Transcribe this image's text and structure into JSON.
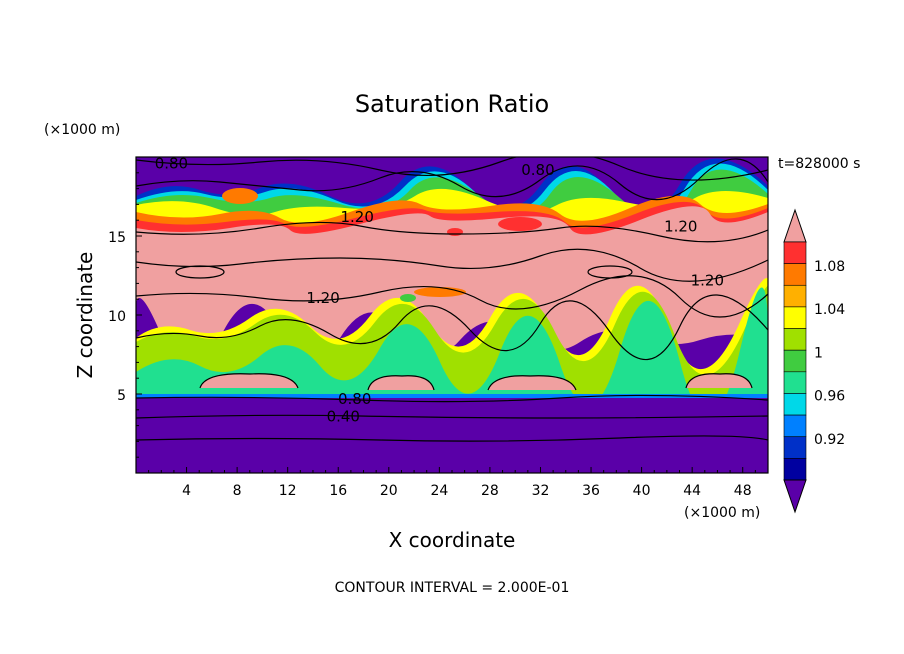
{
  "chart_data": {
    "type": "heatmap",
    "title": "Saturation Ratio",
    "xlabel": "X coordinate",
    "ylabel": "Z coordinate",
    "x_unit": "(×1000 m)",
    "y_unit": "(×1000 m)",
    "time_label": "t=828000 s",
    "footer": "CONTOUR INTERVAL = 2.000E-01",
    "xlim": [
      0,
      50
    ],
    "ylim": [
      0,
      20
    ],
    "x_ticks": [
      4,
      8,
      12,
      16,
      20,
      24,
      28,
      32,
      36,
      40,
      44,
      48
    ],
    "y_ticks": [
      5,
      10,
      15
    ],
    "colorbar": {
      "labels": [
        "1.08",
        "1.04",
        "1",
        "0.96",
        "0.92"
      ],
      "colors": [
        "#f0a0a0",
        "#ff3030",
        "#ff7a00",
        "#ffb000",
        "#ffff00",
        "#a0e000",
        "#40cc40",
        "#20e090",
        "#00d8e8",
        "#0080ff",
        "#0030c8",
        "#0000a0",
        "#5a00a8"
      ]
    },
    "contour_labels": [
      {
        "text": "0.80",
        "x": 2.8,
        "z": 19.4
      },
      {
        "text": "0.80",
        "x": 31.8,
        "z": 19.0
      },
      {
        "text": "1.20",
        "x": 17.5,
        "z": 16.0
      },
      {
        "text": "1.20",
        "x": 43.1,
        "z": 15.4
      },
      {
        "text": "1.20",
        "x": 45.2,
        "z": 12.0
      },
      {
        "text": "1.20",
        "x": 14.8,
        "z": 10.9
      },
      {
        "text": "0.80",
        "x": 17.3,
        "z": 4.5
      },
      {
        "text": "0.40",
        "x": 16.4,
        "z": 3.4
      }
    ]
  }
}
